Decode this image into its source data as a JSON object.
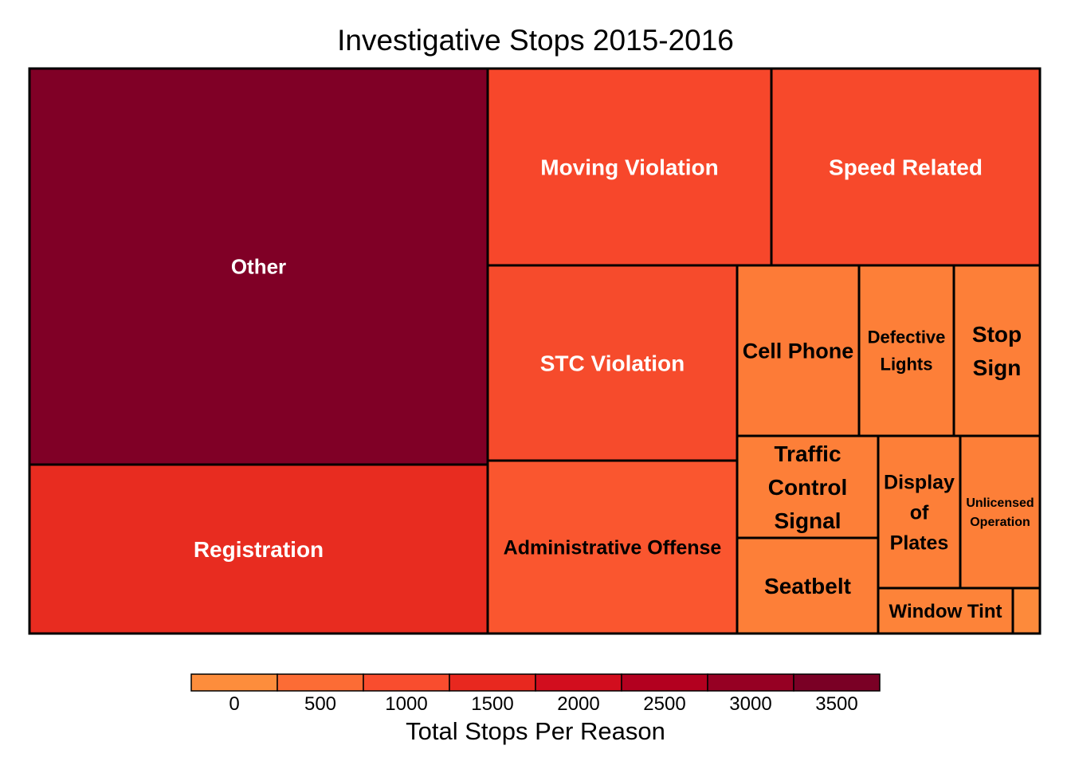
{
  "chart_data": {
    "type": "treemap",
    "title": "Investigative Stops 2015-2016",
    "legend_title": "Total Stops Per Reason",
    "color_scale": {
      "breaks": [
        -250,
        250,
        750,
        1250,
        1750,
        2250,
        2750,
        3250,
        3750
      ],
      "colors": [
        "#fd8d3c",
        "#fc6c35",
        "#f94d2e",
        "#e8281f",
        "#d20e1e",
        "#b3001f",
        "#960023",
        "#7a0025"
      ],
      "tick_values": [
        0,
        500,
        1000,
        1500,
        2000,
        2500,
        3000,
        3500
      ],
      "tick_labels": [
        "0",
        "500",
        "1000",
        "1500",
        "2000",
        "2500",
        "3000",
        "3500"
      ]
    },
    "items": [
      {
        "label": "Other",
        "lines": [
          "Other"
        ],
        "value": 3500,
        "color": "#800026"
      },
      {
        "label": "Registration",
        "lines": [
          "Registration"
        ],
        "value": 1500,
        "color": "#e82c20"
      },
      {
        "label": "Moving Violation",
        "lines": [
          "Moving Violation"
        ],
        "value": 1050,
        "color": "#f7472b"
      },
      {
        "label": "Speed Related",
        "lines": [
          "Speed Related"
        ],
        "value": 1000,
        "color": "#f7492b"
      },
      {
        "label": "STC Violation",
        "lines": [
          "STC Violation"
        ],
        "value": 1000,
        "color": "#f64b2c"
      },
      {
        "label": "Administrative Offense",
        "lines": [
          "Administrative Offense"
        ],
        "value": 850,
        "color": "#fa562f"
      },
      {
        "label": "Cell Phone",
        "lines": [
          "Cell Phone"
        ],
        "value": 330,
        "color": "#fd7b37"
      },
      {
        "label": "Defective Lights",
        "lines": [
          "Defective",
          "Lights"
        ],
        "value": 260,
        "color": "#fd7f38"
      },
      {
        "label": "Stop Sign",
        "lines": [
          "Stop",
          "Sign"
        ],
        "value": 230,
        "color": "#fd7f38"
      },
      {
        "label": "Traffic Control Signal",
        "lines": [
          "Traffic",
          "Control",
          "Signal"
        ],
        "value": 230,
        "color": "#fd7f38"
      },
      {
        "label": "Seatbelt",
        "lines": [
          "Seatbelt"
        ],
        "value": 210,
        "color": "#fd7f38"
      },
      {
        "label": "Display of Plates",
        "lines": [
          "Display",
          "of",
          "Plates"
        ],
        "value": 210,
        "color": "#fd7f38"
      },
      {
        "label": "Unlicensed Operation",
        "lines": [
          "Unlicensed",
          "Operation"
        ],
        "value": 190,
        "color": "#fd7f38"
      },
      {
        "label": "Window Tint",
        "lines": [
          "Window Tint"
        ],
        "value": 90,
        "color": "#fd8339"
      },
      {
        "label": "",
        "lines": [],
        "value": 17,
        "color": "#fd8a3b"
      }
    ]
  }
}
